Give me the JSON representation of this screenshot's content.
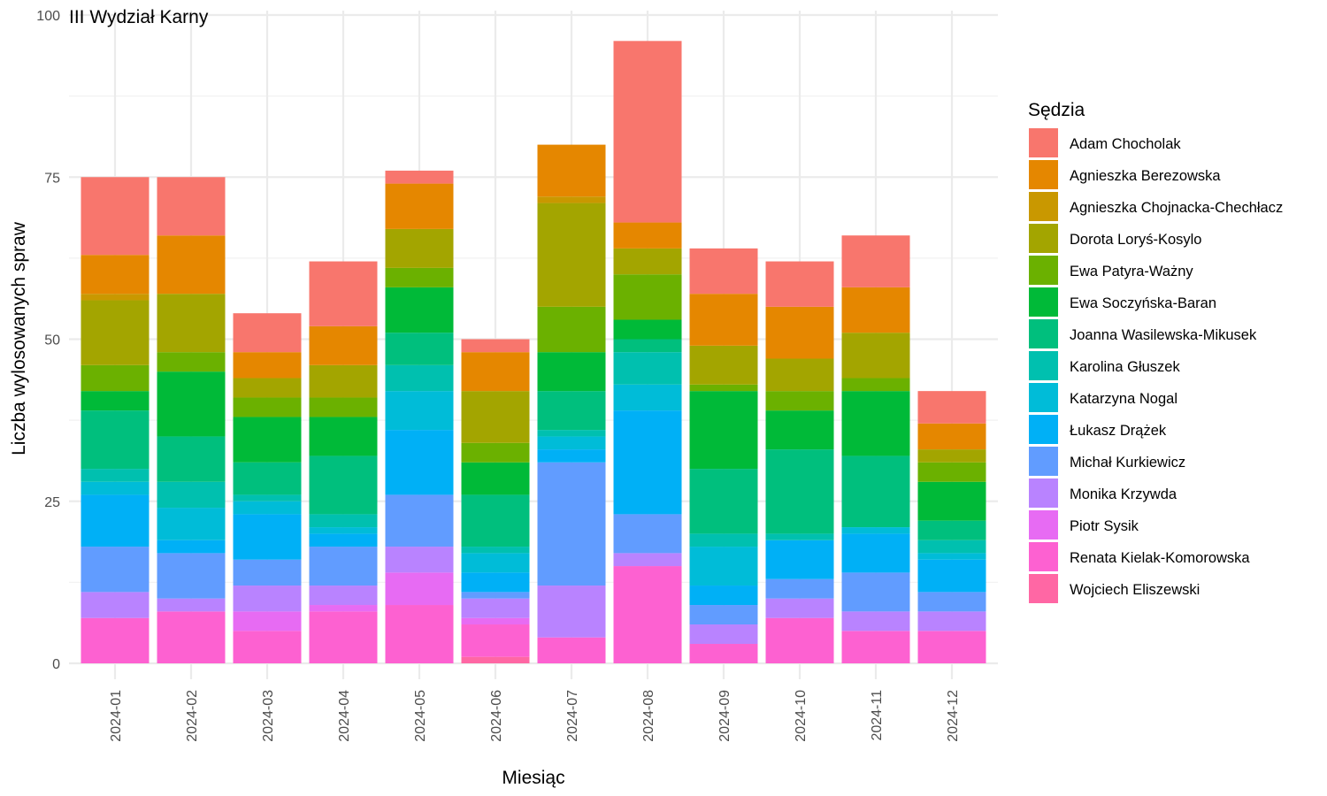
{
  "chart_data": {
    "type": "bar",
    "stacked": true,
    "title": "III Wydział Karny",
    "xlabel": "Miesiąc",
    "ylabel": "Liczba wylosowanych spraw",
    "ylim": [
      0,
      100
    ],
    "yticks": [
      0,
      25,
      50,
      75,
      100
    ],
    "grid": true,
    "legend_title": "Sędzia",
    "legend_position": "right",
    "categories": [
      "2024-01",
      "2024-02",
      "2024-03",
      "2024-04",
      "2024-05",
      "2024-06",
      "2024-07",
      "2024-08",
      "2024-09",
      "2024-10",
      "2024-11",
      "2024-12"
    ],
    "series": [
      {
        "name": "Adam Chocholak",
        "color": "#F8766D",
        "values": [
          12,
          9,
          6,
          10,
          2,
          2,
          0,
          28,
          7,
          7,
          8,
          5
        ]
      },
      {
        "name": "Agnieszka Berezowska",
        "color": "#E58700",
        "values": [
          6,
          9,
          4,
          6,
          7,
          6,
          8,
          4,
          8,
          8,
          7,
          4
        ]
      },
      {
        "name": "Agnieszka Chojnacka-Chechłacz",
        "color": "#C99800",
        "values": [
          1,
          0,
          0,
          0,
          0,
          0,
          1,
          0,
          0,
          0,
          0,
          0
        ]
      },
      {
        "name": "Dorota Loryś-Kosylo",
        "color": "#A3A500",
        "values": [
          10,
          9,
          3,
          5,
          6,
          8,
          16,
          4,
          6,
          5,
          7,
          2
        ]
      },
      {
        "name": "Ewa Patyra-Ważny",
        "color": "#6BB100",
        "values": [
          4,
          3,
          3,
          3,
          3,
          3,
          7,
          7,
          1,
          3,
          2,
          3
        ]
      },
      {
        "name": "Ewa Soczyńska-Baran",
        "color": "#00BA38",
        "values": [
          3,
          10,
          7,
          6,
          7,
          5,
          6,
          3,
          12,
          6,
          10,
          6
        ]
      },
      {
        "name": "Joanna Wasilewska-Mikusek",
        "color": "#00BF7D",
        "values": [
          9,
          7,
          5,
          9,
          5,
          8,
          6,
          2,
          10,
          13,
          11,
          3
        ]
      },
      {
        "name": "Karolina Głuszek",
        "color": "#00C0AF",
        "values": [
          2,
          4,
          1,
          2,
          4,
          1,
          1,
          5,
          2,
          1,
          0,
          2
        ]
      },
      {
        "name": "Katarzyna Nogal",
        "color": "#00BCD8",
        "values": [
          2,
          5,
          2,
          1,
          6,
          3,
          2,
          4,
          6,
          0,
          1,
          1
        ]
      },
      {
        "name": "Łukasz Drążek",
        "color": "#00B0F6",
        "values": [
          8,
          2,
          7,
          2,
          10,
          3,
          2,
          16,
          3,
          6,
          6,
          5
        ]
      },
      {
        "name": "Michał Kurkiewicz",
        "color": "#619CFF",
        "values": [
          7,
          7,
          4,
          6,
          8,
          1,
          19,
          6,
          3,
          3,
          6,
          3
        ]
      },
      {
        "name": "Monika Krzywda",
        "color": "#B983FF",
        "values": [
          4,
          2,
          4,
          3,
          4,
          3,
          8,
          2,
          3,
          3,
          3,
          3
        ]
      },
      {
        "name": "Piotr Sysik",
        "color": "#E76BF3",
        "values": [
          0,
          0,
          3,
          1,
          5,
          1,
          0,
          0,
          0,
          0,
          0,
          0
        ]
      },
      {
        "name": "Renata Kielak-Komorowska",
        "color": "#FD61D1",
        "values": [
          7,
          8,
          5,
          8,
          9,
          5,
          4,
          15,
          3,
          7,
          5,
          5
        ]
      },
      {
        "name": "Wojciech Eliszewski",
        "color": "#FF67A4",
        "values": [
          0,
          0,
          0,
          0,
          0,
          1,
          0,
          0,
          0,
          0,
          0,
          0
        ]
      }
    ]
  }
}
